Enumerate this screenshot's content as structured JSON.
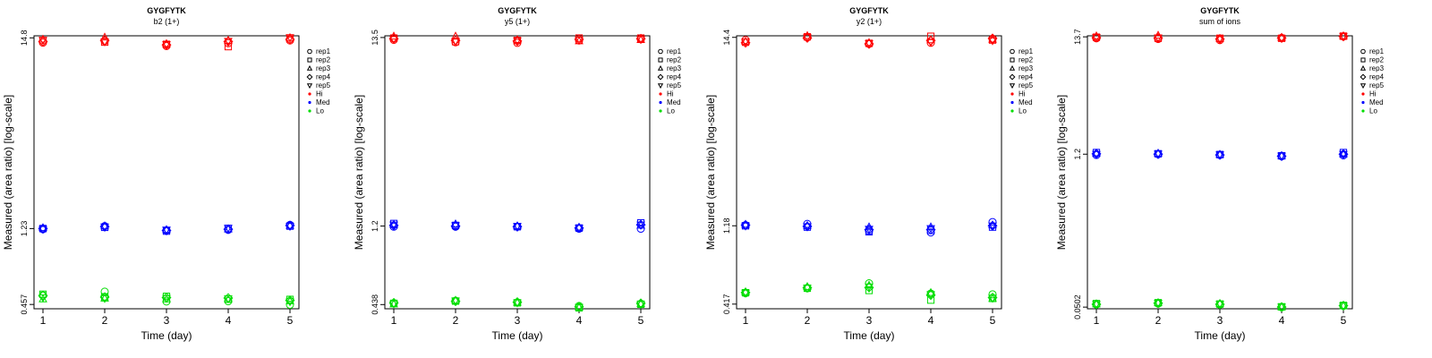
{
  "chart_data": [
    {
      "type": "scatter",
      "title": "GYGFYTK",
      "subtitle": "b2 (1+)",
      "xlabel": "Time (day)",
      "ylabel": "Measured (area ratio) [log-scale]",
      "x_ticks": [
        "1",
        "2",
        "3",
        "4",
        "5"
      ],
      "y_tick_labels": [
        "0.457",
        "1.23",
        "14.8"
      ],
      "y_tick_values": [
        0.457,
        1.23,
        14.8
      ],
      "ylim": [
        0.432,
        15.2
      ],
      "y_scale": "log",
      "grid": false,
      "legend_position": "right",
      "legend": [
        {
          "label": "rep1",
          "symbol": "circle"
        },
        {
          "label": "rep2",
          "symbol": "square"
        },
        {
          "label": "rep3",
          "symbol": "triangle-up"
        },
        {
          "label": "rep4",
          "symbol": "diamond"
        },
        {
          "label": "rep5",
          "symbol": "triangle-down"
        },
        {
          "label": "Hi",
          "color": "#ff0000"
        },
        {
          "label": "Med",
          "color": "#0000ff"
        },
        {
          "label": "Lo",
          "color": "#00dd00"
        }
      ],
      "series": [
        {
          "name": "Hi",
          "color": "#ff0000",
          "reps": [
            [
              13.9,
              14.2,
              13.3,
              13.8,
              14.3
            ],
            [
              14.3,
              14.0,
              13.6,
              13.2,
              14.6
            ],
            [
              14.5,
              14.9,
              13.7,
              14.3,
              14.8
            ],
            [
              14.1,
              14.3,
              13.5,
              14.1,
              14.5
            ],
            [
              14.4,
              14.1,
              13.6,
              14.2,
              14.9
            ]
          ]
        },
        {
          "name": "Med",
          "color": "#0000ff",
          "reps": [
            [
              1.22,
              1.27,
              1.2,
              1.21,
              1.29
            ],
            [
              1.23,
              1.25,
              1.19,
              1.23,
              1.27
            ],
            [
              1.24,
              1.27,
              1.21,
              1.22,
              1.28
            ],
            [
              1.23,
              1.26,
              1.2,
              1.22,
              1.28
            ],
            [
              1.22,
              1.26,
              1.21,
              1.24,
              1.27
            ]
          ]
        },
        {
          "name": "Lo",
          "color": "#00dd00",
          "reps": [
            [
              0.515,
              0.54,
              0.475,
              0.477,
              0.455
            ],
            [
              0.522,
              0.505,
              0.508,
              0.49,
              0.488
            ],
            [
              0.49,
              0.495,
              0.49,
              0.488,
              0.478
            ],
            [
              0.512,
              0.503,
              0.5,
              0.497,
              0.482
            ],
            [
              0.5,
              0.495,
              0.496,
              0.493,
              0.475
            ]
          ]
        }
      ]
    },
    {
      "type": "scatter",
      "title": "GYGFYTK",
      "subtitle": "y5 (1+)",
      "xlabel": "Time (day)",
      "ylabel": "Measured (area ratio) [log-scale]",
      "x_ticks": [
        "1",
        "2",
        "3",
        "4",
        "5"
      ],
      "y_tick_labels": [
        "0.438",
        "1.2",
        "13.5"
      ],
      "y_tick_values": [
        0.438,
        1.2,
        13.5
      ],
      "ylim": [
        0.415,
        13.8
      ],
      "y_scale": "log",
      "grid": false,
      "legend_position": "right",
      "legend": [
        {
          "label": "rep1",
          "symbol": "circle"
        },
        {
          "label": "rep2",
          "symbol": "square"
        },
        {
          "label": "rep3",
          "symbol": "triangle-up"
        },
        {
          "label": "rep4",
          "symbol": "diamond"
        },
        {
          "label": "rep5",
          "symbol": "triangle-down"
        },
        {
          "label": "Hi",
          "color": "#ff0000"
        },
        {
          "label": "Med",
          "color": "#0000ff"
        },
        {
          "label": "Lo",
          "color": "#00dd00"
        }
      ],
      "series": [
        {
          "name": "Hi",
          "color": "#ff0000",
          "reps": [
            [
              13.1,
              12.7,
              12.6,
              13.0,
              13.2
            ],
            [
              13.4,
              12.8,
              13.0,
              13.4,
              13.4
            ],
            [
              13.7,
              13.7,
              13.1,
              12.9,
              13.1
            ],
            [
              13.3,
              13.0,
              12.9,
              13.2,
              13.3
            ],
            [
              13.2,
              12.9,
              13.0,
              13.1,
              13.2
            ]
          ]
        },
        {
          "name": "Med",
          "color": "#0000ff",
          "reps": [
            [
              1.19,
              1.19,
              1.19,
              1.16,
              1.16
            ],
            [
              1.24,
              1.21,
              1.19,
              1.17,
              1.25
            ],
            [
              1.22,
              1.23,
              1.2,
              1.18,
              1.21
            ],
            [
              1.21,
              1.2,
              1.19,
              1.17,
              1.22
            ],
            [
              1.22,
              1.21,
              1.2,
              1.17,
              1.22
            ]
          ]
        },
        {
          "name": "Lo",
          "color": "#00dd00",
          "reps": [
            [
              0.445,
              0.46,
              0.45,
              0.43,
              0.442
            ],
            [
              0.445,
              0.458,
              0.448,
              0.42,
              0.44
            ],
            [
              0.44,
              0.462,
              0.45,
              0.422,
              0.442
            ],
            [
              0.448,
              0.457,
              0.452,
              0.426,
              0.445
            ],
            [
              0.443,
              0.46,
              0.449,
              0.424,
              0.44
            ]
          ]
        }
      ]
    },
    {
      "type": "scatter",
      "title": "GYGFYTK",
      "subtitle": "y2 (1+)",
      "xlabel": "Time (day)",
      "ylabel": "Measured (area ratio) [log-scale]",
      "x_ticks": [
        "1",
        "2",
        "3",
        "4",
        "5"
      ],
      "y_tick_labels": [
        "0.417",
        "1.18",
        "14.4"
      ],
      "y_tick_values": [
        0.417,
        1.18,
        14.4
      ],
      "ylim": [
        0.392,
        14.7
      ],
      "y_scale": "log",
      "grid": false,
      "legend_position": "right",
      "legend": [
        {
          "label": "rep1",
          "symbol": "circle"
        },
        {
          "label": "rep2",
          "symbol": "square"
        },
        {
          "label": "rep3",
          "symbol": "triangle-up"
        },
        {
          "label": "rep4",
          "symbol": "diamond"
        },
        {
          "label": "rep5",
          "symbol": "triangle-down"
        },
        {
          "label": "Hi",
          "color": "#ff0000"
        },
        {
          "label": "Med",
          "color": "#0000ff"
        },
        {
          "label": "Lo",
          "color": "#00dd00"
        }
      ],
      "series": [
        {
          "name": "Hi",
          "color": "#ff0000",
          "reps": [
            [
              13.9,
              14.4,
              13.2,
              13.4,
              14.1
            ],
            [
              13.5,
              14.5,
              13.3,
              14.6,
              13.9
            ],
            [
              13.6,
              14.7,
              13.4,
              13.9,
              14.0
            ],
            [
              13.4,
              14.3,
              13.2,
              13.8,
              14.2
            ],
            [
              13.6,
              14.4,
              13.3,
              13.5,
              13.8
            ]
          ]
        },
        {
          "name": "Med",
          "color": "#0000ff",
          "reps": [
            [
              1.19,
              1.21,
              1.1,
              1.08,
              1.24
            ],
            [
              1.18,
              1.16,
              1.09,
              1.11,
              1.16
            ],
            [
              1.2,
              1.18,
              1.16,
              1.16,
              1.19
            ],
            [
              1.19,
              1.17,
              1.12,
              1.12,
              1.18
            ],
            [
              1.18,
              1.17,
              1.13,
              1.14,
              1.18
            ]
          ]
        },
        {
          "name": "Lo",
          "color": "#00dd00",
          "reps": [
            [
              0.482,
              0.515,
              0.55,
              0.48,
              0.475
            ],
            [
              0.485,
              0.515,
              0.5,
              0.44,
              0.45
            ],
            [
              0.49,
              0.525,
              0.535,
              0.485,
              0.448
            ],
            [
              0.486,
              0.518,
              0.52,
              0.47,
              0.455
            ],
            [
              0.484,
              0.517,
              0.525,
              0.475,
              0.452
            ]
          ]
        }
      ]
    },
    {
      "type": "scatter",
      "title": "GYGFYTK",
      "subtitle": "sum of ions",
      "xlabel": "Time (day)",
      "ylabel": "Measured (area ratio) [log-scale]",
      "x_ticks": [
        "1",
        "2",
        "3",
        "4",
        "5"
      ],
      "y_tick_labels": [
        "0.0502",
        "1.2",
        "13.7"
      ],
      "y_tick_values": [
        0.0502,
        1.2,
        13.7
      ],
      "ylim": [
        0.0485,
        14.0
      ],
      "y_scale": "log",
      "grid": false,
      "legend_position": "right",
      "legend": [
        {
          "label": "rep1",
          "symbol": "circle"
        },
        {
          "label": "rep2",
          "symbol": "square"
        },
        {
          "label": "rep3",
          "symbol": "triangle-up"
        },
        {
          "label": "rep4",
          "symbol": "diamond"
        },
        {
          "label": "rep5",
          "symbol": "triangle-down"
        },
        {
          "label": "Hi",
          "color": "#ff0000"
        },
        {
          "label": "Med",
          "color": "#0000ff"
        },
        {
          "label": "Lo",
          "color": "#00dd00"
        }
      ],
      "series": [
        {
          "name": "Hi",
          "color": "#ff0000",
          "reps": [
            [
              13.3,
              13.1,
              12.8,
              13.4,
              13.8
            ],
            [
              13.6,
              13.3,
              13.3,
              13.3,
              13.9
            ],
            [
              13.9,
              14.1,
              13.2,
              13.5,
              13.9
            ],
            [
              13.5,
              13.4,
              13.1,
              13.4,
              13.8
            ],
            [
              13.6,
              13.5,
              13.2,
              13.3,
              13.9
            ]
          ]
        },
        {
          "name": "Med",
          "color": "#0000ff",
          "reps": [
            [
              1.18,
              1.2,
              1.18,
              1.15,
              1.17
            ],
            [
              1.24,
              1.21,
              1.19,
              1.16,
              1.24
            ],
            [
              1.22,
              1.22,
              1.19,
              1.16,
              1.2
            ],
            [
              1.21,
              1.2,
              1.18,
              1.15,
              1.2
            ],
            [
              1.2,
              1.21,
              1.19,
              1.16,
              1.2
            ]
          ]
        },
        {
          "name": "Lo",
          "color": "#00dd00",
          "reps": [
            [
              0.053,
              0.054,
              0.053,
              0.05,
              0.0515
            ],
            [
              0.054,
              0.055,
              0.0535,
              0.0505,
              0.052
            ],
            [
              0.0535,
              0.0548,
              0.054,
              0.0502,
              0.0515
            ],
            [
              0.0532,
              0.0545,
              0.0532,
              0.0503,
              0.0518
            ],
            [
              0.0534,
              0.0547,
              0.0536,
              0.0506,
              0.0516
            ]
          ]
        }
      ]
    }
  ]
}
